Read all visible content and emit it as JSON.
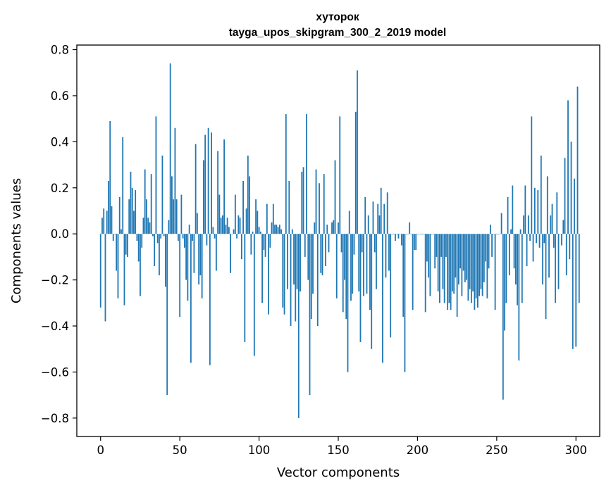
{
  "chart_data": {
    "type": "bar",
    "title_line1": "хуторок",
    "title_line2": "tayga_upos_skipgram_300_2_2019 model",
    "xlabel": "Vector components",
    "ylabel": "Components values",
    "xlim": [
      -15,
      315
    ],
    "ylim": [
      -0.88,
      0.82
    ],
    "xticks": [
      0,
      50,
      100,
      150,
      200,
      250,
      300
    ],
    "yticks": [
      -0.8,
      -0.6,
      -0.4,
      -0.2,
      0.0,
      0.2,
      0.4,
      0.6,
      0.8
    ],
    "xtick_labels": [
      "0",
      "50",
      "100",
      "150",
      "200",
      "250",
      "300"
    ],
    "ytick_labels": [
      "−0.8",
      "−0.6",
      "−0.4",
      "−0.2",
      "0.0",
      "0.2",
      "0.4",
      "0.6",
      "0.8"
    ],
    "bar_color": "#1f77b4",
    "values": [
      -0.32,
      0.07,
      0.11,
      -0.38,
      0.1,
      0.23,
      0.49,
      0.12,
      -0.03,
      0.0,
      -0.16,
      -0.28,
      0.16,
      0.02,
      0.42,
      -0.31,
      -0.09,
      -0.1,
      0.15,
      0.27,
      0.2,
      0.1,
      0.19,
      -0.03,
      -0.12,
      -0.27,
      -0.06,
      0.07,
      0.28,
      0.15,
      0.07,
      0.05,
      0.26,
      -0.01,
      -0.14,
      0.51,
      -0.04,
      -0.18,
      -0.02,
      0.34,
      -0.01,
      -0.23,
      -0.7,
      0.06,
      0.74,
      0.25,
      0.15,
      0.46,
      0.15,
      -0.03,
      -0.36,
      0.17,
      -0.02,
      -0.06,
      -0.2,
      -0.29,
      0.04,
      -0.56,
      -0.03,
      -0.17,
      0.39,
      0.09,
      -0.22,
      -0.18,
      -0.28,
      0.32,
      0.43,
      -0.05,
      0.46,
      -0.57,
      0.44,
      0.03,
      -0.02,
      -0.16,
      0.36,
      0.17,
      0.07,
      0.08,
      0.41,
      0.04,
      0.07,
      0.03,
      -0.17,
      0.0,
      0.02,
      0.17,
      -0.02,
      0.08,
      0.07,
      -0.11,
      0.23,
      -0.47,
      0.11,
      0.34,
      0.25,
      -0.09,
      0.01,
      -0.53,
      0.15,
      0.1,
      0.03,
      0.01,
      -0.3,
      -0.07,
      -0.1,
      0.13,
      -0.35,
      -0.06,
      0.05,
      0.13,
      0.04,
      0.04,
      0.03,
      0.04,
      0.02,
      -0.32,
      -0.35,
      0.52,
      -0.24,
      0.23,
      -0.4,
      0.02,
      -0.22,
      -0.38,
      -0.24,
      -0.8,
      -0.25,
      0.27,
      0.29,
      -0.1,
      0.52,
      -0.2,
      -0.7,
      -0.37,
      -0.26,
      0.05,
      0.28,
      -0.4,
      0.22,
      -0.17,
      -0.18,
      0.26,
      -0.14,
      0.04,
      -0.08,
      0.0,
      0.05,
      0.06,
      0.32,
      -0.28,
      0.05,
      0.51,
      -0.08,
      -0.34,
      -0.2,
      -0.37,
      -0.6,
      0.1,
      -0.29,
      -0.26,
      -0.09,
      0.53,
      0.71,
      -0.25,
      -0.47,
      -0.08,
      -0.27,
      0.16,
      -0.26,
      0.08,
      -0.33,
      -0.5,
      0.14,
      -0.08,
      -0.24,
      0.13,
      0.08,
      0.2,
      -0.56,
      0.13,
      -0.19,
      0.18,
      -0.16,
      -0.45,
      0.0,
      0.0,
      -0.03,
      0.0,
      -0.02,
      0.0,
      -0.05,
      -0.36,
      -0.6,
      0.0,
      0.0,
      0.05,
      0.0,
      -0.33,
      -0.07,
      -0.07,
      0.0,
      0.0,
      0.0,
      0.0,
      0.0,
      -0.34,
      -0.12,
      -0.19,
      -0.27,
      0.0,
      0.0,
      -0.15,
      -0.1,
      -0.25,
      -0.3,
      -0.1,
      -0.24,
      -0.3,
      -0.1,
      -0.33,
      -0.3,
      -0.33,
      -0.25,
      -0.26,
      -0.19,
      -0.36,
      -0.22,
      -0.15,
      -0.27,
      -0.16,
      -0.21,
      -0.2,
      -0.29,
      -0.24,
      -0.3,
      -0.25,
      -0.33,
      -0.28,
      -0.32,
      -0.27,
      -0.24,
      -0.27,
      -0.21,
      -0.12,
      -0.28,
      -0.15,
      0.04,
      -0.1,
      0.0,
      -0.33,
      0.0,
      0.0,
      0.0,
      0.09,
      -0.72,
      -0.42,
      -0.3,
      0.16,
      -0.18,
      0.02,
      0.21,
      -0.15,
      -0.22,
      -0.31,
      -0.55,
      0.02,
      -0.3,
      0.08,
      0.21,
      -0.14,
      0.08,
      -0.03,
      0.51,
      -0.12,
      0.2,
      -0.04,
      0.19,
      -0.06,
      0.34,
      -0.22,
      -0.04,
      -0.37,
      0.25,
      -0.19,
      0.08,
      0.13,
      -0.06,
      -0.3,
      0.18,
      -0.24,
      0.0,
      -0.05,
      0.06,
      0.33,
      -0.18,
      0.58,
      -0.11,
      0.4,
      -0.5,
      0.24,
      -0.49,
      0.64,
      -0.3
    ]
  }
}
